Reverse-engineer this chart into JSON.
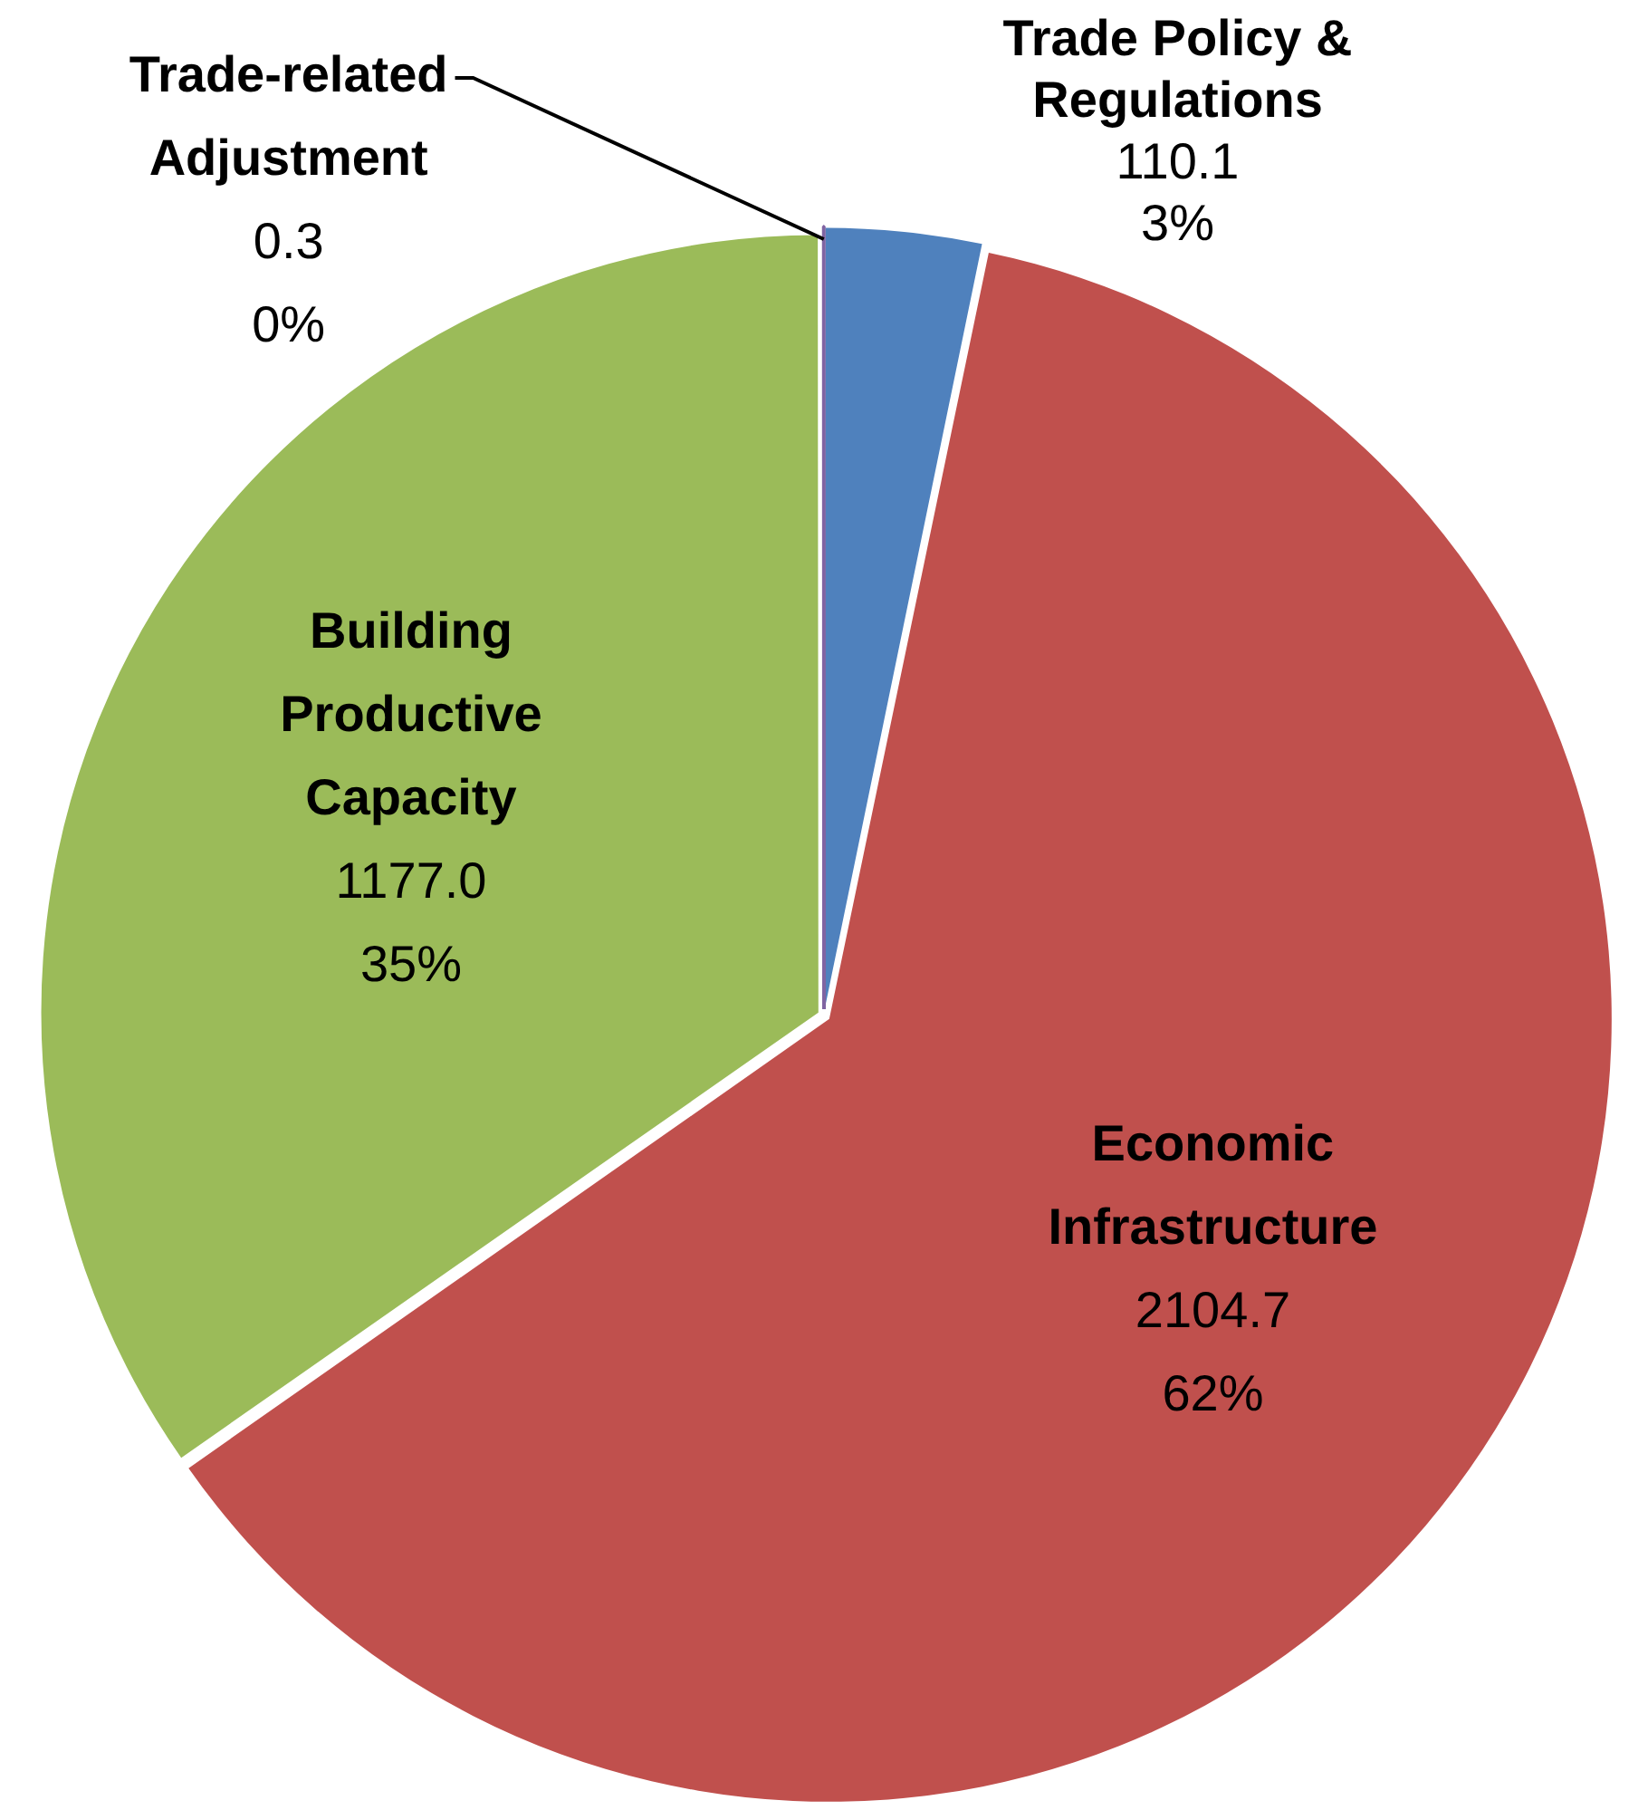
{
  "chart_data": {
    "type": "pie",
    "categories": [
      "Trade Policy & Regulations",
      "Economic Infrastructure",
      "Building Productive Capacity",
      "Trade-related Adjustment"
    ],
    "values": [
      110.1,
      2104.7,
      1177.0,
      0.3
    ],
    "colors": [
      "#4f81bd",
      "#c0504d",
      "#9bbb59",
      "#8064a2"
    ],
    "value_labels": [
      "110.1\n3%",
      "2104.7\n62%",
      "1177.0\n35%",
      "0.3\n0%"
    ]
  }
}
